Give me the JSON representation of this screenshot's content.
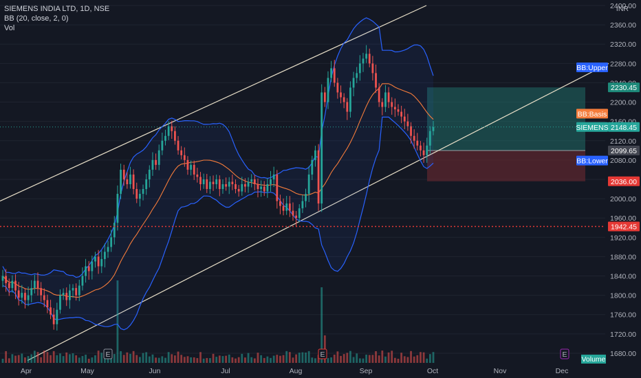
{
  "header": {
    "symbol": "SIEMENS INDIA LTD, 1D, NSE",
    "indicator": "BB (20, close, 2, 0)",
    "volume": "Vol"
  },
  "colors": {
    "background": "#141823",
    "up": "#26a69a",
    "down": "#ef5350",
    "band": "#2962ff",
    "basis": "#f57c3b",
    "channel": "#e8dfc8",
    "target_zone": "#1f6b66",
    "stop_zone": "#6b2a31"
  },
  "chart_data": {
    "type": "candlestick",
    "currency": "INR",
    "ylim": [
      1660,
      2400
    ],
    "y_ticks": [
      1680,
      1720,
      1760,
      1800,
      1840,
      1880,
      1920,
      1960,
      2000,
      2040,
      2080,
      2120,
      2160,
      2200,
      2240,
      2280,
      2320,
      2360,
      2400
    ],
    "x_labels": [
      "Apr",
      "May",
      "Jun",
      "Jul",
      "Aug",
      "Sep",
      "Oct",
      "Nov",
      "Dec"
    ],
    "price_tags": [
      {
        "label": "BB:Upper",
        "value": 2272,
        "color": "#2962ff",
        "kind": "label"
      },
      {
        "label": "2230.45",
        "value": 2230.45,
        "color": "#1e8a7a",
        "kind": "price"
      },
      {
        "label": "BB:Basis",
        "value": 2176,
        "color": "#f57c3b",
        "kind": "label"
      },
      {
        "label": "SIEMENS",
        "value": 2148.45,
        "color": "#26a69a",
        "kind": "label"
      },
      {
        "label": "2148.45",
        "value": 2148.45,
        "color": "#26a69a",
        "kind": "price"
      },
      {
        "label": "2099.65",
        "value": 2099.65,
        "color": "#434651",
        "kind": "price"
      },
      {
        "label": "BB:Lower",
        "value": 2079,
        "color": "#2962ff",
        "kind": "label"
      },
      {
        "label": "2036.00",
        "value": 2036,
        "color": "#e53935",
        "kind": "price"
      },
      {
        "label": "1942.45",
        "value": 1942.45,
        "color": "#e53935",
        "kind": "price"
      }
    ],
    "horizontal_line": 1942.45,
    "last_price": 2148.45,
    "position": {
      "entry": 2099.65,
      "target": 2230.45,
      "stop": 2036.0
    },
    "volume_label": "Volume",
    "events": [
      "E",
      "E",
      "E"
    ],
    "series": [
      {
        "name": "SIEMENS",
        "kind": "ohlc",
        "close": [
          1840,
          1825,
          1815,
          1830,
          1810,
          1795,
          1805,
          1790,
          1800,
          1815,
          1830,
          1815,
          1800,
          1790,
          1775,
          1760,
          1740,
          1770,
          1800,
          1805,
          1790,
          1810,
          1815,
          1800,
          1820,
          1840,
          1860,
          1850,
          1870,
          1880,
          1860,
          1875,
          1890,
          1900,
          1920,
          1950,
          2010,
          2060,
          2040,
          2030,
          2050,
          2020,
          2000,
          2010,
          2020,
          2040,
          2060,
          2080,
          2070,
          2100,
          2120,
          2130,
          2150,
          2140,
          2120,
          2100,
          2090,
          2080,
          2060,
          2070,
          2050,
          2045,
          2030,
          2040,
          2020,
          2035,
          2030,
          2040,
          2020,
          2030,
          2025,
          2035,
          2030,
          2020,
          2015,
          2030,
          2025,
          2035,
          2040,
          2030,
          2020,
          2025,
          2015,
          2030,
          2040,
          2050,
          1995,
          1985,
          1975,
          1990,
          1975,
          1965,
          1960,
          1980,
          1995,
          2010,
          2050,
          2080,
          2100,
          1990,
          2220,
          2200,
          2250,
          2270,
          2240,
          2220,
          2210,
          2200,
          2180,
          2230,
          2250,
          2260,
          2280,
          2290,
          2300,
          2280,
          2260,
          2230,
          2200,
          2190,
          2220,
          2200,
          2190,
          2185,
          2180,
          2170,
          2160,
          2150,
          2130,
          2120,
          2110,
          2100,
          2090,
          2110,
          2140,
          2148.45
        ],
        "high_wick": 8,
        "low_wick": 8
      }
    ]
  }
}
